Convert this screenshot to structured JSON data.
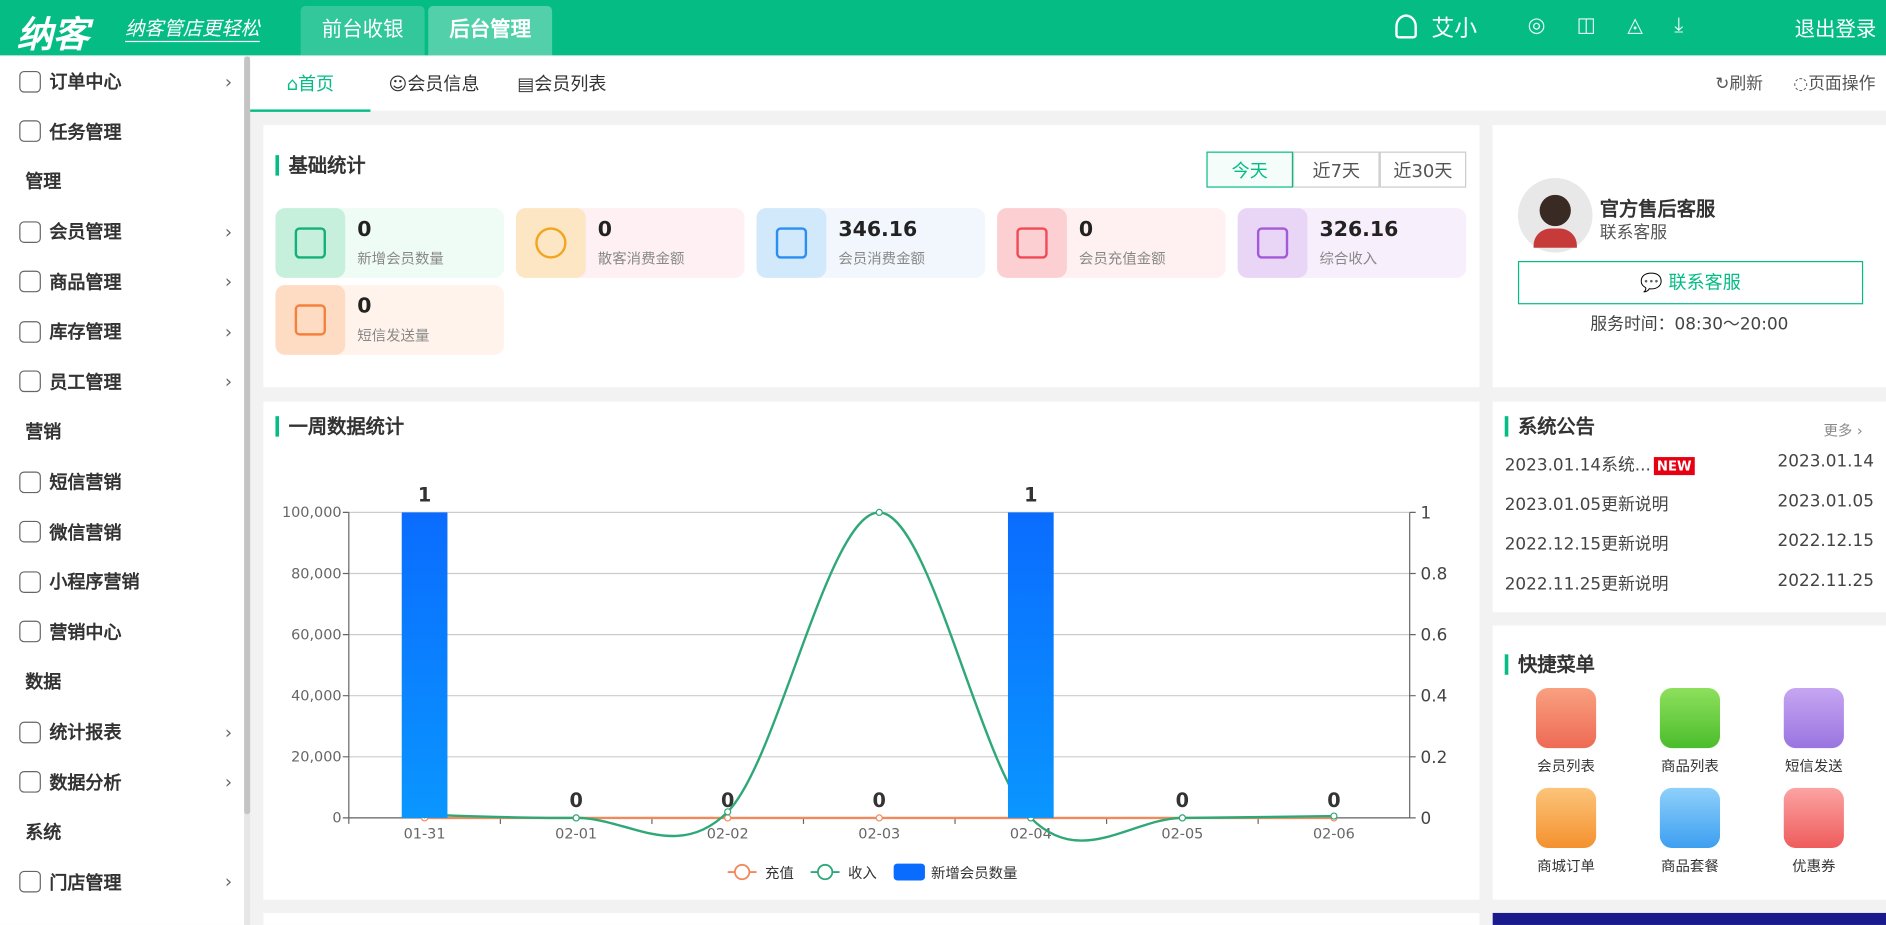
{
  "header": {
    "logo": "纳客",
    "slogan": "纳客管店更轻松",
    "tabs": [
      "前台收银",
      "后台管理"
    ],
    "user": "艾小",
    "logout": "退出登录"
  },
  "sidebar": [
    {
      "label": "订单中心",
      "submenu": true
    },
    {
      "label": "任务管理"
    },
    {
      "group": "管理"
    },
    {
      "label": "会员管理",
      "submenu": true
    },
    {
      "label": "商品管理",
      "submenu": true
    },
    {
      "label": "库存管理",
      "submenu": true
    },
    {
      "label": "员工管理",
      "submenu": true
    },
    {
      "group": "营销"
    },
    {
      "label": "短信营销"
    },
    {
      "label": "微信营销"
    },
    {
      "label": "小程序营销"
    },
    {
      "label": "营销中心"
    },
    {
      "group": "数据"
    },
    {
      "label": "统计报表",
      "submenu": true
    },
    {
      "label": "数据分析",
      "submenu": true
    },
    {
      "group": "系统"
    },
    {
      "label": "门店管理",
      "submenu": true
    }
  ],
  "tabs": {
    "items": [
      "首页",
      "会员信息",
      "会员列表"
    ],
    "refresh": "刷新",
    "page_ops": "页面操作"
  },
  "stats": {
    "title": "基础统计",
    "ranges": [
      "今天",
      "近7天",
      "近30天"
    ],
    "items": [
      {
        "value": 0,
        "label": "新增会员数量"
      },
      {
        "value": 0,
        "label": "散客消费金额"
      },
      {
        "value": 346.16,
        "label": "会员消费金额"
      },
      {
        "value": 0,
        "label": "会员充值金额"
      },
      {
        "value": 326.16,
        "label": "综合收入"
      },
      {
        "value": 0,
        "label": "短信发送量"
      }
    ]
  },
  "chart_data": {
    "type": "combo",
    "title": "一周数据统计",
    "categories": [
      "01-31",
      "02-01",
      "02-02",
      "02-03",
      "02-04",
      "02-05",
      "02-06"
    ],
    "series": [
      {
        "name": "充值",
        "type": "line",
        "color": "#f08a5d",
        "values": [
          0,
          0,
          0,
          0,
          0,
          0,
          0
        ]
      },
      {
        "name": "收入",
        "type": "line",
        "color": "#2fa878",
        "values": [
          1000,
          0,
          2000,
          100000,
          0,
          0,
          600
        ]
      },
      {
        "name": "新增会员数量",
        "type": "bar",
        "axis": "y2",
        "color": "#0a6cff",
        "values": [
          1,
          0,
          0,
          0,
          1,
          0,
          0
        ]
      }
    ],
    "ylim": [
      0,
      100000
    ],
    "yticks": [
      0,
      {
        "value": 20000,
        "label": "20,000"
      },
      {
        "value": 40000,
        "label": "40,000"
      },
      {
        "value": 60000,
        "label": "60,000"
      },
      {
        "value": 80000,
        "label": "80,000"
      },
      {
        "value": 100000,
        "label": "100,000"
      }
    ],
    "y2lim": [
      0,
      1
    ],
    "y2ticks": [
      0,
      0.2,
      0.4,
      0.6,
      0.8,
      1
    ],
    "grid": true,
    "legend": "bottom"
  },
  "service": {
    "name": "官方售后客服",
    "role": "联系客服",
    "button": "联系客服",
    "hours": "服务时间：08:30～20:00"
  },
  "notices": {
    "title": "系统公告",
    "more": "更多 ›",
    "items": [
      {
        "title": "2023.01.14系统...",
        "badge": "NEW",
        "date": "2023.01.14"
      },
      {
        "title": "2023.01.05更新说明",
        "date": "2023.01.05"
      },
      {
        "title": "2022.12.15更新说明",
        "date": "2022.12.15"
      },
      {
        "title": "2022.11.25更新说明",
        "date": "2022.11.25"
      }
    ]
  },
  "quick_menu": {
    "title": "快捷菜单",
    "items": [
      "会员列表",
      "商品列表",
      "短信发送",
      "商城订单",
      "商品套餐",
      "优惠券"
    ]
  }
}
